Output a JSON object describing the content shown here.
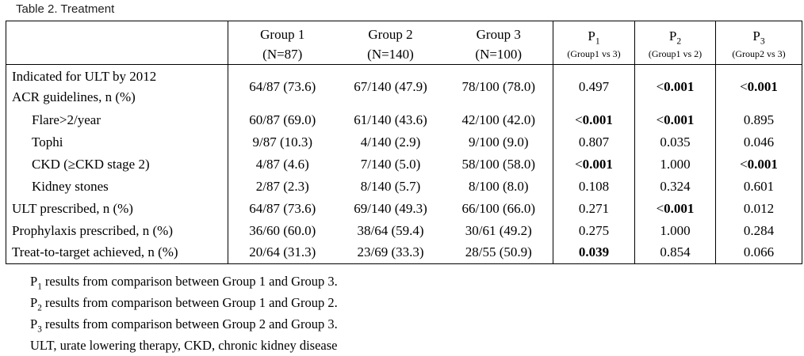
{
  "title": "Table 2. Treatment",
  "table": {
    "group_headers": [
      {
        "name": "Group 1",
        "n": "(N=87)"
      },
      {
        "name": "Group 2",
        "n": "(N=140)"
      },
      {
        "name": "Group 3",
        "n": "(N=100)"
      }
    ],
    "p_headers": [
      {
        "label": "P",
        "sub": "1",
        "note": "(Group1 vs 3)"
      },
      {
        "label": "P",
        "sub": "2",
        "note": "(Group1 vs 2)"
      },
      {
        "label": "P",
        "sub": "3",
        "note": "(Group2 vs 3)"
      }
    ],
    "rows": [
      {
        "label": "Indicated for ULT by 2012\nACR guidelines, n (%)",
        "indent": false,
        "tall": true,
        "values": [
          "64/87 (73.6)",
          "67/140 (47.9)",
          "78/100 (78.0)"
        ],
        "p_values": [
          {
            "text": "0.497",
            "bold": false
          },
          {
            "text": "<0.001",
            "bold": true
          },
          {
            "text": "<0.001",
            "bold": true
          }
        ]
      },
      {
        "label": "Flare>2/year",
        "indent": true,
        "tall": false,
        "values": [
          "60/87 (69.0)",
          "61/140 (43.6)",
          "42/100 (42.0)"
        ],
        "p_values": [
          {
            "text": "<0.001",
            "bold": true
          },
          {
            "text": "<0.001",
            "bold": true
          },
          {
            "text": "0.895",
            "bold": false
          }
        ]
      },
      {
        "label": "Tophi",
        "indent": true,
        "tall": false,
        "values": [
          "9/87 (10.3)",
          "4/140 (2.9)",
          "9/100 (9.0)"
        ],
        "p_values": [
          {
            "text": "0.807",
            "bold": false
          },
          {
            "text": "0.035",
            "bold": false
          },
          {
            "text": "0.046",
            "bold": false
          }
        ]
      },
      {
        "label": "CKD (≥CKD stage 2)",
        "indent": true,
        "tall": false,
        "values": [
          "4/87 (4.6)",
          "7/140 (5.0)",
          "58/100 (58.0)"
        ],
        "p_values": [
          {
            "text": "<0.001",
            "bold": true
          },
          {
            "text": "1.000",
            "bold": false
          },
          {
            "text": "<0.001",
            "bold": true
          }
        ]
      },
      {
        "label": "Kidney stones",
        "indent": true,
        "tall": false,
        "values": [
          "2/87 (2.3)",
          "8/140 (5.7)",
          "8/100 (8.0)"
        ],
        "p_values": [
          {
            "text": "0.108",
            "bold": false
          },
          {
            "text": "0.324",
            "bold": false
          },
          {
            "text": "0.601",
            "bold": false
          }
        ]
      },
      {
        "label": "ULT prescribed, n (%)",
        "indent": false,
        "tall": false,
        "values": [
          "64/87 (73.6)",
          "69/140 (49.3)",
          "66/100 (66.0)"
        ],
        "p_values": [
          {
            "text": "0.271",
            "bold": false
          },
          {
            "text": "<0.001",
            "bold": true
          },
          {
            "text": "0.012",
            "bold": false
          }
        ]
      },
      {
        "label": "Prophylaxis prescribed, n (%)",
        "indent": false,
        "tall": false,
        "values": [
          "36/60 (60.0)",
          "38/64 (59.4)",
          "30/61 (49.2)"
        ],
        "p_values": [
          {
            "text": "0.275",
            "bold": false
          },
          {
            "text": "1.000",
            "bold": false
          },
          {
            "text": "0.284",
            "bold": false
          }
        ]
      },
      {
        "label": "Treat-to-target achieved, n (%)",
        "indent": false,
        "tall": false,
        "values": [
          "20/64 (31.3)",
          "23/69 (33.3)",
          "28/55 (50.9)"
        ],
        "p_values": [
          {
            "text": "0.039",
            "bold": true
          },
          {
            "text": "0.854",
            "bold": false
          },
          {
            "text": "0.066",
            "bold": false
          }
        ]
      }
    ]
  },
  "footnotes": [
    {
      "prefix": "P",
      "sub": "1",
      "text": " results from comparison between Group 1 and Group 3."
    },
    {
      "prefix": "P",
      "sub": "2",
      "text": " results from comparison between Group 1 and Group 2."
    },
    {
      "prefix": "P",
      "sub": "3",
      "text": " results from comparison between Group 2 and Group 3."
    },
    {
      "prefix": "",
      "sub": "",
      "text": "ULT, urate lowering therapy, CKD, chronic kidney disease"
    }
  ],
  "colors": {
    "background": "#ffffff",
    "text": "#000000",
    "title_text": "#1f1f1f",
    "border": "#000000"
  }
}
